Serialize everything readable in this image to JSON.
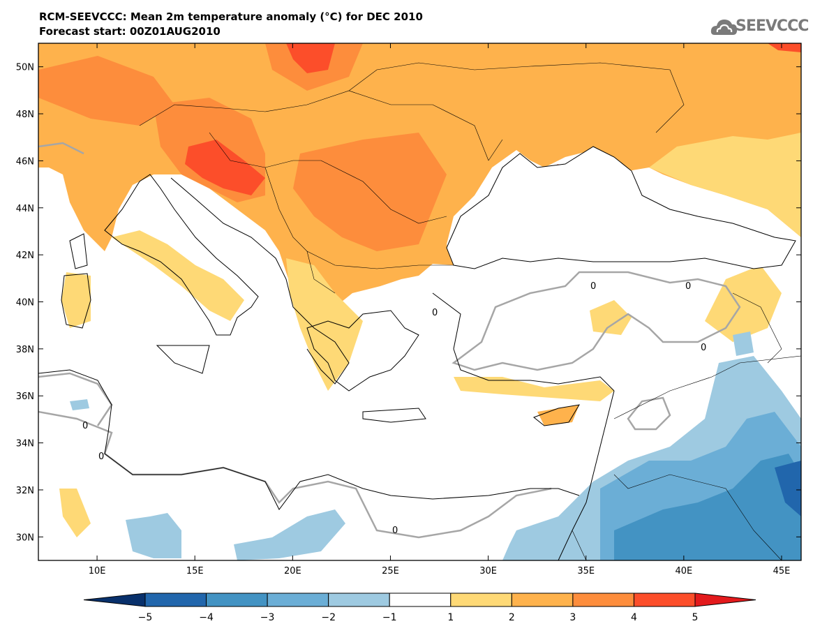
{
  "header": {
    "title": "RCM-SEEVCCC: Mean 2m temperature anomaly (°C) for DEC 2010",
    "subtitle": "Forecast start: 00Z01AUG2010"
  },
  "logo": {
    "text": "SEEVCCC",
    "icon": "cloud-logo-icon",
    "color": "#7a7a7a"
  },
  "map": {
    "lon_range": [
      7,
      46
    ],
    "lat_range": [
      29,
      51
    ],
    "lon_ticks": [
      {
        "value": 10,
        "label": "10E"
      },
      {
        "value": 15,
        "label": "15E"
      },
      {
        "value": 20,
        "label": "20E"
      },
      {
        "value": 25,
        "label": "25E"
      },
      {
        "value": 30,
        "label": "30E"
      },
      {
        "value": 35,
        "label": "35E"
      },
      {
        "value": 40,
        "label": "40E"
      },
      {
        "value": 45,
        "label": "45E"
      }
    ],
    "lat_ticks": [
      {
        "value": 30,
        "label": "30N"
      },
      {
        "value": 32,
        "label": "32N"
      },
      {
        "value": 34,
        "label": "34N"
      },
      {
        "value": 36,
        "label": "36N"
      },
      {
        "value": 38,
        "label": "38N"
      },
      {
        "value": 40,
        "label": "40N"
      },
      {
        "value": 42,
        "label": "42N"
      },
      {
        "value": 44,
        "label": "44N"
      },
      {
        "value": 46,
        "label": "46N"
      },
      {
        "value": 48,
        "label": "48N"
      },
      {
        "value": 50,
        "label": "50N"
      }
    ],
    "contour_label": "0"
  },
  "colorbar": {
    "levels": [
      "−5",
      "−4",
      "−3",
      "−2",
      "−1",
      "1",
      "2",
      "3",
      "4",
      "5"
    ],
    "colors": [
      "#08306b",
      "#2166ac",
      "#4393c3",
      "#6baed6",
      "#9ecae1",
      "#ffffff",
      "#fed976",
      "#feb24c",
      "#fd8d3c",
      "#fc4e2a",
      "#e31a1c"
    ]
  }
}
